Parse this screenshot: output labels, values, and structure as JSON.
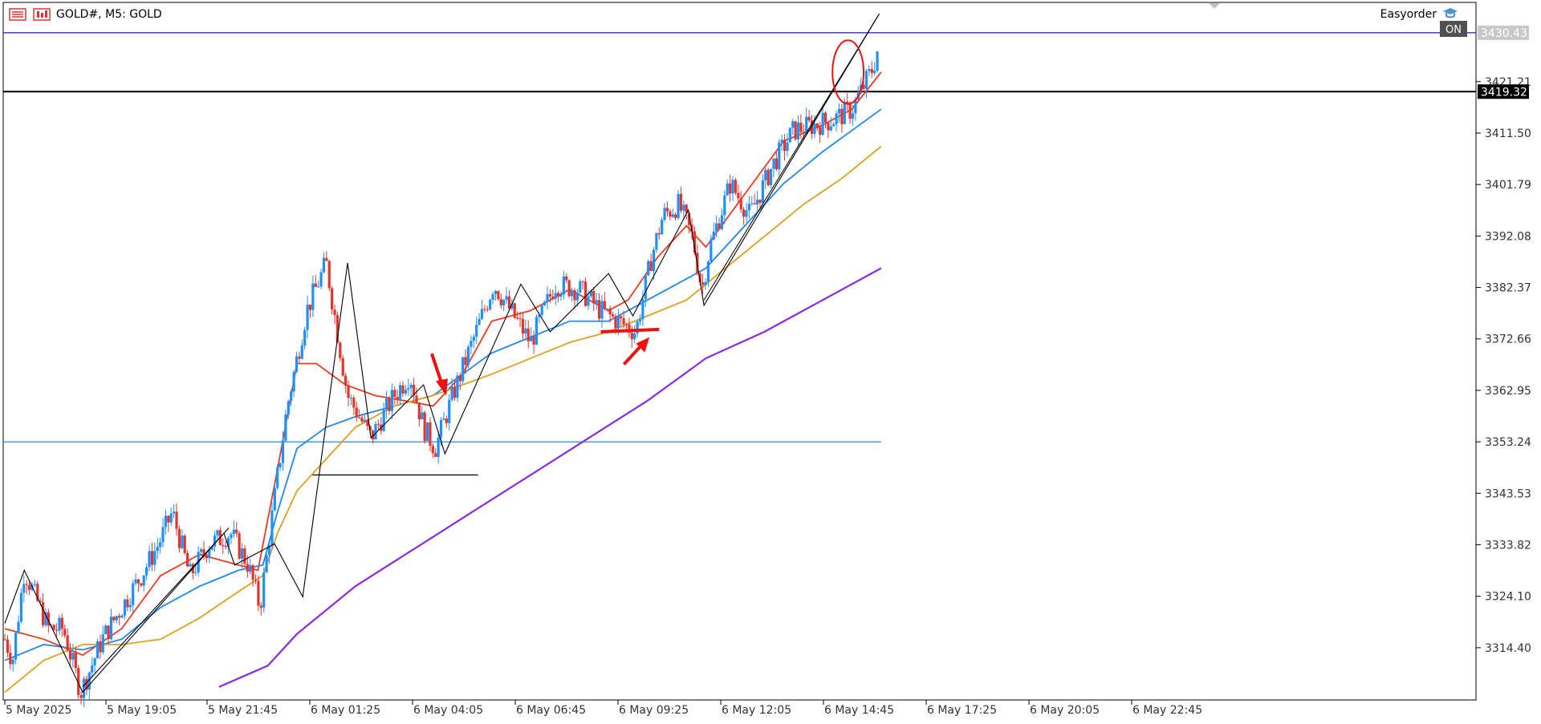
{
  "header": {
    "symbol_info": "GOLD#, M5:  GOLD",
    "menu_icon": "menu-icon",
    "chart_icon": "candlestick-icon"
  },
  "expert": {
    "name": "Easyorder",
    "icon": "cap-icon",
    "badge": "ON"
  },
  "price_tags": {
    "bid": "3430.43",
    "hline": "3419.32"
  },
  "colors": {
    "bull": "#1e90ff",
    "bear": "#e8332a",
    "ema_fast": "#f0381e",
    "ema_mid": "#1e88ee",
    "ema_slow": "#e0a020",
    "ema_long": "#8a2be2",
    "zigzag": "#000000",
    "annotation": "#ee1111",
    "hline_blue": "#1e88ee",
    "hline_black": "#000000"
  },
  "chart_data": {
    "type": "candlestick",
    "symbol": "GOLD#",
    "timeframe": "M5",
    "y_axis": {
      "ticks": [
        "3314.40",
        "3324.10",
        "3333.82",
        "3343.53",
        "3353.24",
        "3362.95",
        "3372.66",
        "3382.37",
        "3392.08",
        "3401.79",
        "3411.50",
        "3421.21"
      ],
      "range": [
        3305,
        3436
      ]
    },
    "x_axis": {
      "ticks": [
        "5 May 2025",
        "5 May 19:05",
        "5 May 21:45",
        "6 May 01:25",
        "6 May 04:05",
        "6 May 06:45",
        "6 May 09:25",
        "6 May 12:05",
        "6 May 14:45",
        "6 May 17:25",
        "6 May 20:05",
        "6 May 22:45"
      ]
    },
    "path_keypoints": [
      [
        0,
        3316
      ],
      [
        8,
        3312
      ],
      [
        20,
        3329
      ],
      [
        45,
        3318
      ],
      [
        60,
        3318
      ],
      [
        78,
        3306
      ],
      [
        100,
        3316
      ],
      [
        120,
        3322
      ],
      [
        140,
        3328
      ],
      [
        158,
        3334
      ],
      [
        172,
        3340
      ],
      [
        190,
        3328
      ],
      [
        210,
        3334
      ],
      [
        232,
        3336
      ],
      [
        250,
        3330
      ],
      [
        262,
        3322
      ],
      [
        275,
        3340
      ],
      [
        290,
        3360
      ],
      [
        310,
        3378
      ],
      [
        330,
        3387
      ],
      [
        352,
        3362
      ],
      [
        376,
        3354
      ],
      [
        400,
        3362
      ],
      [
        416,
        3366
      ],
      [
        430,
        3356
      ],
      [
        442,
        3352
      ],
      [
        460,
        3362
      ],
      [
        480,
        3372
      ],
      [
        502,
        3383
      ],
      [
        540,
        3372
      ],
      [
        565,
        3383
      ],
      [
        590,
        3382
      ],
      [
        612,
        3378
      ],
      [
        630,
        3376
      ],
      [
        648,
        3374
      ],
      [
        664,
        3388
      ],
      [
        676,
        3396
      ],
      [
        692,
        3398
      ],
      [
        706,
        3392
      ],
      [
        716,
        3382
      ],
      [
        724,
        3390
      ],
      [
        745,
        3402
      ],
      [
        765,
        3396
      ],
      [
        790,
        3406
      ],
      [
        810,
        3412
      ],
      [
        830,
        3413
      ],
      [
        850,
        3414
      ],
      [
        870,
        3416
      ],
      [
        892,
        3424
      ],
      [
        900,
        3430
      ]
    ],
    "moving_averages": [
      {
        "color": "#f0381e",
        "points": [
          [
            0,
            3318
          ],
          [
            40,
            3316
          ],
          [
            80,
            3313
          ],
          [
            120,
            3318
          ],
          [
            160,
            3328
          ],
          [
            200,
            3332
          ],
          [
            240,
            3330
          ],
          [
            260,
            3329
          ],
          [
            280,
            3348
          ],
          [
            300,
            3368
          ],
          [
            320,
            3368
          ],
          [
            350,
            3364
          ],
          [
            380,
            3362
          ],
          [
            410,
            3361
          ],
          [
            440,
            3360
          ],
          [
            470,
            3366
          ],
          [
            500,
            3376
          ],
          [
            540,
            3378
          ],
          [
            580,
            3382
          ],
          [
            620,
            3378
          ],
          [
            640,
            3380
          ],
          [
            670,
            3388
          ],
          [
            700,
            3394
          ],
          [
            720,
            3390
          ],
          [
            760,
            3400
          ],
          [
            800,
            3410
          ],
          [
            840,
            3413
          ],
          [
            870,
            3416
          ],
          [
            900,
            3423
          ]
        ]
      },
      {
        "color": "#1e88ee",
        "points": [
          [
            0,
            3312
          ],
          [
            40,
            3315
          ],
          [
            80,
            3314
          ],
          [
            120,
            3316
          ],
          [
            160,
            3322
          ],
          [
            200,
            3326
          ],
          [
            240,
            3329
          ],
          [
            265,
            3330
          ],
          [
            280,
            3340
          ],
          [
            300,
            3352
          ],
          [
            330,
            3356
          ],
          [
            360,
            3358
          ],
          [
            400,
            3360
          ],
          [
            440,
            3362
          ],
          [
            470,
            3366
          ],
          [
            500,
            3370
          ],
          [
            540,
            3373
          ],
          [
            580,
            3376
          ],
          [
            620,
            3376
          ],
          [
            660,
            3380
          ],
          [
            700,
            3384
          ],
          [
            720,
            3386
          ],
          [
            760,
            3394
          ],
          [
            800,
            3402
          ],
          [
            840,
            3408
          ],
          [
            870,
            3412
          ],
          [
            900,
            3416
          ]
        ]
      },
      {
        "color": "#e0a020",
        "points": [
          [
            0,
            3306
          ],
          [
            40,
            3312
          ],
          [
            80,
            3315
          ],
          [
            120,
            3315
          ],
          [
            160,
            3316
          ],
          [
            200,
            3320
          ],
          [
            240,
            3325
          ],
          [
            265,
            3328
          ],
          [
            280,
            3336
          ],
          [
            300,
            3344
          ],
          [
            330,
            3350
          ],
          [
            360,
            3356
          ],
          [
            400,
            3360
          ],
          [
            440,
            3362
          ],
          [
            470,
            3364
          ],
          [
            500,
            3366
          ],
          [
            540,
            3369
          ],
          [
            580,
            3372
          ],
          [
            620,
            3374
          ],
          [
            660,
            3377
          ],
          [
            700,
            3380
          ],
          [
            740,
            3386
          ],
          [
            780,
            3392
          ],
          [
            820,
            3398
          ],
          [
            860,
            3403
          ],
          [
            900,
            3409
          ]
        ]
      },
      {
        "color": "#8a2be2",
        "points": [
          [
            220,
            3307
          ],
          [
            270,
            3311
          ],
          [
            300,
            3317
          ],
          [
            360,
            3326
          ],
          [
            420,
            3333
          ],
          [
            480,
            3340
          ],
          [
            540,
            3347
          ],
          [
            600,
            3354
          ],
          [
            660,
            3361
          ],
          [
            720,
            3369
          ],
          [
            780,
            3374
          ],
          [
            840,
            3380
          ],
          [
            900,
            3386
          ]
        ]
      }
    ],
    "zigzag": [
      [
        0,
        3319
      ],
      [
        20,
        3329
      ],
      [
        80,
        3306
      ],
      [
        225,
        3336
      ],
      [
        236,
        3330
      ],
      [
        277,
        3334
      ],
      [
        306,
        3324
      ],
      [
        352,
        3387
      ],
      [
        376,
        3354
      ],
      [
        430,
        3364
      ],
      [
        452,
        3351
      ],
      [
        530,
        3383
      ],
      [
        560,
        3374
      ],
      [
        620,
        3385
      ],
      [
        645,
        3377
      ],
      [
        702,
        3397
      ],
      [
        718,
        3379
      ],
      [
        898,
        3434
      ]
    ],
    "extra_trend_line": [
      [
        80,
        3307
      ],
      [
        230,
        3337
      ]
    ],
    "horizontal_lines": [
      {
        "price": 3430.43,
        "color": "#2b2bd6"
      },
      {
        "price": 3419.32,
        "color": "#000000"
      },
      {
        "price": 3353.24,
        "color": "#1e88ee",
        "x_end": 900
      },
      {
        "price": 3347.0,
        "color": "#000000",
        "x_start": 316,
        "x_end": 486
      }
    ],
    "annotations": [
      {
        "type": "arrow-down",
        "at": [
          450,
          3362
        ]
      },
      {
        "type": "hline-marker",
        "price": 3374.0,
        "from": 612,
        "to": 672
      },
      {
        "type": "arrow-up",
        "at": [
          644,
          3373
        ]
      },
      {
        "type": "ellipse",
        "center": [
          866,
          3423
        ],
        "rx": 16,
        "ry": 6
      }
    ]
  }
}
